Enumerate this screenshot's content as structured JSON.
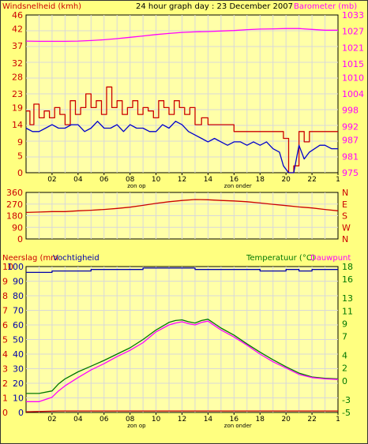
{
  "page": {
    "title": "24 hour graph day : 23 December 2007",
    "background": "#ffff80",
    "plot_background": "#ffffa8",
    "grid_color": "#d8d8d8"
  },
  "chart_data": [
    {
      "type": "line",
      "panel": "wind-barometer",
      "title": "24 hour graph day : 23 December 2007",
      "left_axis_label": "Windsnelheid (kmh)",
      "right_axis_label": "Barometer (mb)",
      "x_tick_labels": [
        "02",
        "04",
        "06",
        "08",
        "10",
        "12",
        "14",
        "16",
        "18",
        "20",
        "22",
        "1"
      ],
      "x_markers": [
        {
          "label": "zon op",
          "hour": 8.5
        },
        {
          "label": "zon onder",
          "hour": 16.3
        }
      ],
      "x_range_hours": [
        0,
        24
      ],
      "left_ylim": [
        0,
        46
      ],
      "left_ticks": [
        0,
        5,
        9,
        14,
        19,
        23,
        28,
        32,
        37,
        42,
        46
      ],
      "right_ylim": [
        975,
        1033
      ],
      "right_ticks": [
        975,
        981,
        987,
        992,
        998,
        1004,
        1010,
        1015,
        1021,
        1027,
        1033
      ],
      "grid": true,
      "series": [
        {
          "name": "Windsnelheid (kmh)",
          "axis": "left",
          "color": "#cc0000",
          "style": "step",
          "x": [
            0,
            0.3,
            0.6,
            1,
            1.4,
            1.8,
            2.2,
            2.6,
            3,
            3.4,
            3.8,
            4.2,
            4.6,
            5,
            5.4,
            5.8,
            6.2,
            6.6,
            7,
            7.4,
            7.8,
            8.2,
            8.6,
            9,
            9.4,
            9.8,
            10.2,
            10.6,
            11,
            11.4,
            11.8,
            12.2,
            12.6,
            13,
            13.5,
            14,
            14.5,
            15,
            15.5,
            16,
            16.5,
            17,
            17.5,
            18,
            18.5,
            19,
            19.5,
            19.8,
            20.2,
            20.6,
            21,
            21.4,
            21.8,
            22.2,
            22.6,
            23,
            23.5,
            24
          ],
          "values": [
            18,
            14,
            20,
            16,
            18,
            16,
            19,
            17,
            14,
            21,
            17,
            19,
            23,
            19,
            21,
            17,
            25,
            19,
            21,
            17,
            19,
            21,
            17,
            19,
            18,
            16,
            21,
            19,
            17,
            21,
            19,
            17,
            19,
            14,
            16,
            14,
            14,
            14,
            14,
            12,
            12,
            12,
            12,
            12,
            12,
            12,
            12,
            10,
            0,
            2,
            12,
            9,
            12,
            12,
            12,
            12,
            12,
            12
          ]
        },
        {
          "name": "Windsnelheid gemiddeld",
          "axis": "left",
          "color": "#0000cc",
          "style": "line",
          "x": [
            0,
            0.5,
            1,
            1.5,
            2,
            2.5,
            3,
            3.5,
            4,
            4.5,
            5,
            5.5,
            6,
            6.5,
            7,
            7.5,
            8,
            8.5,
            9,
            9.5,
            10,
            10.5,
            11,
            11.5,
            12,
            12.5,
            13,
            13.5,
            14,
            14.5,
            15,
            15.5,
            16,
            16.5,
            17,
            17.5,
            18,
            18.5,
            19,
            19.5,
            19.8,
            20.2,
            20.6,
            21,
            21.4,
            21.8,
            22.2,
            22.6,
            23,
            23.5,
            24
          ],
          "values": [
            13,
            12,
            12,
            13,
            14,
            13,
            13,
            14,
            14,
            12,
            13,
            15,
            13,
            13,
            14,
            12,
            14,
            13,
            13,
            12,
            12,
            14,
            13,
            15,
            14,
            12,
            11,
            10,
            9,
            10,
            9,
            8,
            9,
            9,
            8,
            9,
            8,
            9,
            7,
            6,
            2,
            0,
            0,
            8,
            4,
            6,
            7,
            8,
            8,
            7,
            7
          ]
        },
        {
          "name": "Barometer (mb)",
          "axis": "right",
          "color": "#ff00ff",
          "style": "line",
          "x": [
            0,
            1,
            2,
            3,
            4,
            5,
            6,
            7,
            8,
            9,
            10,
            11,
            12,
            13,
            14,
            15,
            16,
            17,
            18,
            19,
            20,
            21,
            22,
            23,
            24
          ],
          "values": [
            1023.4,
            1023.3,
            1023.3,
            1023.3,
            1023.4,
            1023.6,
            1023.9,
            1024.3,
            1024.8,
            1025.3,
            1025.8,
            1026.2,
            1026.6,
            1026.8,
            1026.9,
            1027.1,
            1027.3,
            1027.6,
            1027.8,
            1027.9,
            1028.0,
            1028.0,
            1027.7,
            1027.4,
            1027.4
          ]
        }
      ]
    },
    {
      "type": "line",
      "panel": "wind-direction",
      "left_ticks": [
        0,
        90,
        180,
        270,
        360
      ],
      "left_ylim": [
        0,
        360
      ],
      "right_tick_labels": [
        "N",
        "W",
        "S",
        "E",
        "N"
      ],
      "x_range_hours": [
        0,
        24
      ],
      "grid": true,
      "series": [
        {
          "name": "Windrichting",
          "color": "#cc0000",
          "x": [
            0,
            1,
            2,
            3,
            4,
            5,
            6,
            7,
            8,
            9,
            10,
            11,
            12,
            13,
            14,
            15,
            16,
            17,
            18,
            19,
            20,
            21,
            22,
            23,
            24
          ],
          "values": [
            205,
            208,
            212,
            212,
            218,
            222,
            228,
            236,
            246,
            260,
            275,
            288,
            298,
            305,
            303,
            298,
            294,
            288,
            278,
            268,
            258,
            248,
            240,
            228,
            218
          ]
        }
      ]
    },
    {
      "type": "line",
      "panel": "rain-humidity-temperature",
      "left_axis_label_1": "Neerslag (mm",
      "left_axis_label_2": "Vochtigheid",
      "right_axis_label_1": "Temperatuur (°C)",
      "right_axis_label_2": "Dauwpunt",
      "x_tick_labels": [
        "02",
        "04",
        "06",
        "08",
        "10",
        "12",
        "14",
        "16",
        "18",
        "20",
        "22",
        "1"
      ],
      "x_markers": [
        {
          "label": "zon op",
          "hour": 8.5
        },
        {
          "label": "zon onder",
          "hour": 16.3
        }
      ],
      "x_range_hours": [
        0,
        24
      ],
      "neerslag_ticks": [
        0,
        1,
        2,
        3,
        4,
        5,
        6,
        7,
        8,
        9,
        10
      ],
      "neerslag_ylim": [
        0,
        10
      ],
      "vochtigheid_ticks": [
        0,
        10,
        20,
        30,
        40,
        50,
        60,
        70,
        80,
        90,
        100
      ],
      "vochtigheid_ylim": [
        0,
        100
      ],
      "temperature_ticks": [
        -5,
        -3,
        0,
        2,
        4,
        7,
        9,
        11,
        13,
        16,
        18
      ],
      "temperature_ylim": [
        -5,
        18
      ],
      "grid": true,
      "series": [
        {
          "name": "Vochtigheid",
          "axis": "vochtigheid",
          "color": "#0000aa",
          "style": "step",
          "x": [
            0,
            1,
            2,
            3,
            4,
            5,
            6,
            7,
            8,
            9,
            10,
            11,
            12,
            13,
            14,
            15,
            16,
            17,
            18,
            19,
            20,
            21,
            22,
            23,
            24
          ],
          "values": [
            96,
            96,
            97,
            97,
            97,
            98,
            98,
            98,
            98,
            99,
            99,
            99,
            99,
            98,
            98,
            98,
            98,
            98,
            97,
            97,
            98,
            97,
            98,
            98,
            98
          ]
        },
        {
          "name": "Temperatuur (°C)",
          "axis": "temperature",
          "color": "#007700",
          "x": [
            0,
            1,
            2,
            2.5,
            3,
            4,
            5,
            6,
            7,
            8,
            9,
            10,
            11,
            11.5,
            12,
            12.5,
            13,
            13.5,
            14,
            14.5,
            15,
            16,
            17,
            18,
            19,
            20,
            21,
            22,
            23,
            24
          ],
          "values": [
            -2.0,
            -2.0,
            -1.6,
            -0.5,
            0.3,
            1.4,
            2.3,
            3.2,
            4.2,
            5.2,
            6.5,
            8.0,
            9.2,
            9.5,
            9.6,
            9.3,
            9.1,
            9.5,
            9.7,
            9.0,
            8.3,
            7.2,
            5.8,
            4.5,
            3.3,
            2.2,
            1.2,
            0.6,
            0.4,
            0.3
          ]
        },
        {
          "name": "Dauwpunt",
          "axis": "temperature",
          "color": "#ff00ff",
          "x": [
            0,
            1,
            2,
            2.5,
            3,
            4,
            5,
            6,
            7,
            8,
            9,
            10,
            11,
            11.5,
            12,
            12.5,
            13,
            13.5,
            14,
            14.5,
            15,
            16,
            17,
            18,
            19,
            20,
            21,
            22,
            23,
            24
          ],
          "values": [
            -3.3,
            -3.3,
            -2.6,
            -1.6,
            -0.8,
            0.5,
            1.7,
            2.7,
            3.8,
            4.8,
            6.0,
            7.7,
            8.8,
            9.1,
            9.3,
            9.0,
            8.8,
            9.2,
            9.4,
            8.7,
            8.0,
            6.9,
            5.6,
            4.2,
            3.0,
            2.0,
            1.0,
            0.5,
            0.3,
            0.2
          ]
        },
        {
          "name": "Neerslag",
          "axis": "neerslag",
          "color": "#cc0000",
          "x": [
            0,
            2.5,
            24
          ],
          "values": [
            0.05,
            0.1,
            0.1
          ]
        }
      ]
    }
  ]
}
